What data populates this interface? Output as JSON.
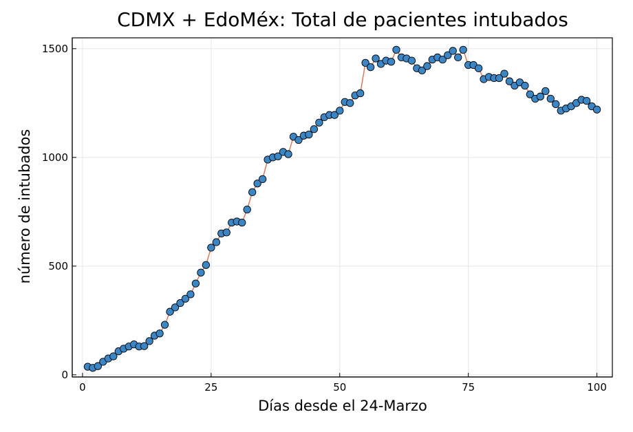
{
  "chart_data": {
    "type": "line",
    "title": "CDMX + EdoMéx: Total de pacientes intubados",
    "xlabel": "Días desde el 24-Marzo",
    "ylabel": "número de intubados",
    "xlim": [
      -2,
      103
    ],
    "ylim": [
      -10,
      1550
    ],
    "xticks": [
      0,
      25,
      50,
      75,
      100
    ],
    "yticks": [
      0,
      500,
      1000,
      1500
    ],
    "grid": true,
    "legend": "none",
    "line_color": "#e26f46",
    "marker_color": "#3a87c8",
    "series": [
      {
        "x": [
          1,
          2,
          3,
          4,
          5,
          6,
          7,
          8,
          9,
          10,
          11,
          12,
          13,
          14,
          15,
          16,
          17,
          18,
          19,
          20,
          21,
          22,
          23,
          24,
          25,
          26,
          27,
          28,
          29,
          30,
          31,
          32,
          33,
          34,
          35,
          36,
          37,
          38,
          39,
          40,
          41,
          42,
          43,
          44,
          45,
          46,
          47,
          48,
          49,
          50,
          51,
          52,
          53,
          54,
          55,
          56,
          57,
          58,
          59,
          60,
          61,
          62,
          63,
          64,
          65,
          66,
          67,
          68,
          69,
          70,
          71,
          72,
          73,
          74,
          75,
          76,
          77,
          78,
          79,
          80,
          81,
          82,
          83,
          84,
          85,
          86,
          87,
          88,
          89,
          90,
          91,
          92,
          93,
          94,
          95,
          96,
          97,
          98,
          99,
          100
        ],
        "values": [
          37,
          32,
          40,
          60,
          75,
          85,
          108,
          120,
          130,
          140,
          130,
          132,
          155,
          180,
          190,
          230,
          290,
          310,
          330,
          350,
          370,
          420,
          470,
          505,
          585,
          610,
          650,
          655,
          700,
          705,
          700,
          760,
          840,
          880,
          900,
          990,
          1000,
          1005,
          1025,
          1015,
          1095,
          1080,
          1100,
          1105,
          1130,
          1160,
          1185,
          1195,
          1195,
          1215,
          1255,
          1250,
          1285,
          1295,
          1435,
          1415,
          1455,
          1430,
          1445,
          1440,
          1495,
          1460,
          1455,
          1445,
          1410,
          1400,
          1420,
          1450,
          1460,
          1450,
          1470,
          1490,
          1460,
          1495,
          1425,
          1425,
          1410,
          1360,
          1370,
          1365,
          1365,
          1385,
          1350,
          1330,
          1345,
          1330,
          1290,
          1270,
          1280,
          1305,
          1270,
          1245,
          1215,
          1225,
          1235,
          1250,
          1265,
          1260,
          1235,
          1220
        ]
      }
    ]
  }
}
